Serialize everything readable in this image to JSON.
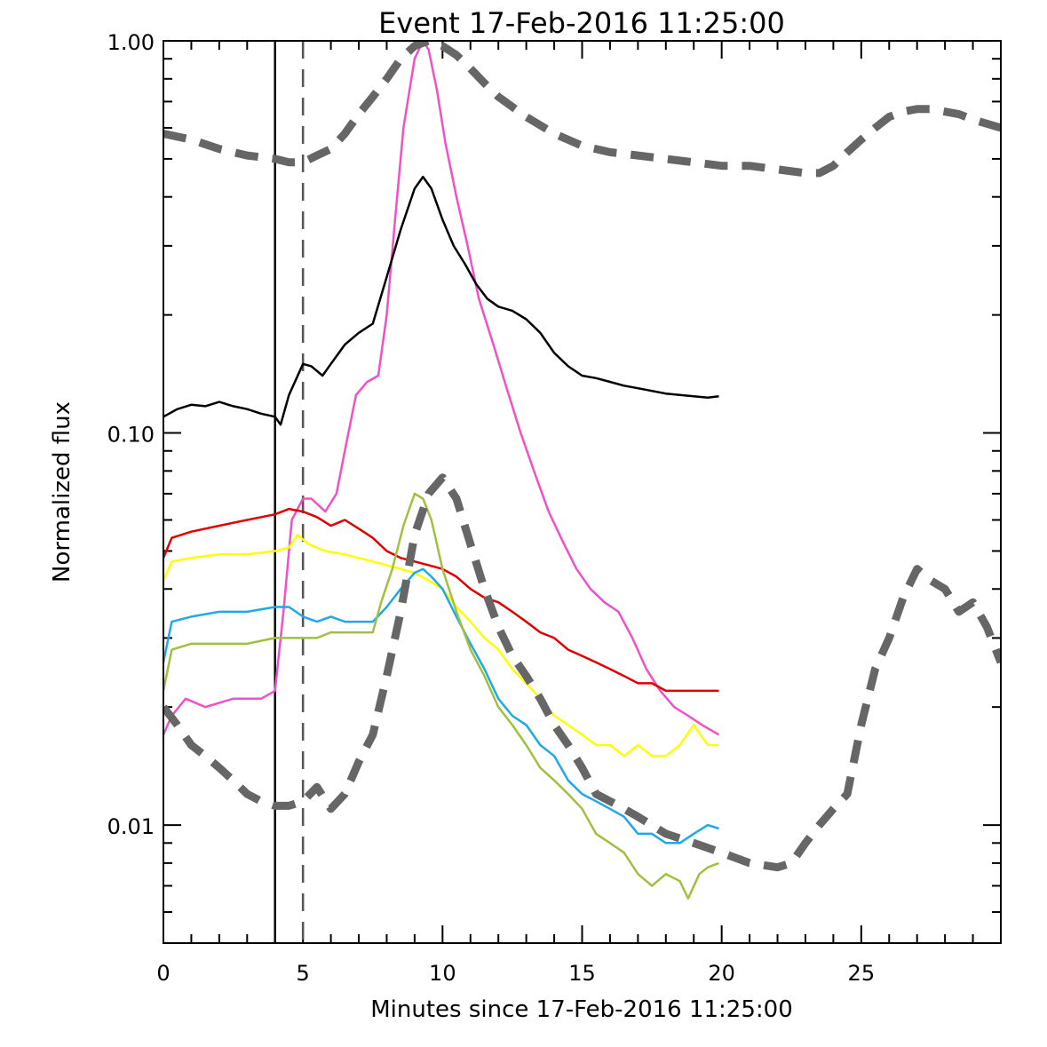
{
  "chart_data": {
    "type": "line",
    "title": "Event 17-Feb-2016 11:25:00",
    "xlabel": "Minutes since 17-Feb-2016 11:25:00",
    "ylabel": "Normalized flux",
    "xlim": [
      0,
      30
    ],
    "ylim": [
      0.005,
      1.0
    ],
    "yscale": "log",
    "grid": false,
    "x_ticks": [
      0,
      5,
      10,
      15,
      20,
      25
    ],
    "x_tick_labels": [
      "0",
      "5",
      "10",
      "15",
      "20",
      "25"
    ],
    "y_ticks": [
      0.01,
      0.1,
      1.0
    ],
    "y_tick_labels": [
      "0.01",
      "0.10",
      "1.00"
    ],
    "vertical_lines": [
      {
        "x": 4.0,
        "style": "solid",
        "color": "#000000"
      },
      {
        "x": 5.0,
        "style": "dashed",
        "color": "#555555"
      }
    ],
    "series": [
      {
        "color": "#f050c8",
        "style": "solid",
        "x": [
          0,
          0.3,
          0.8,
          1.5,
          2.5,
          3.5,
          4.0,
          4.3,
          4.6,
          5.0,
          5.3,
          5.8,
          6.2,
          6.5,
          6.9,
          7.3,
          7.7,
          8.0,
          8.3,
          8.6,
          9.0,
          9.3,
          9.5,
          9.8,
          10.1,
          10.5,
          10.9,
          11.3,
          11.8,
          12.3,
          12.8,
          13.3,
          13.8,
          14.3,
          14.8,
          15.3,
          15.8,
          16.3,
          16.8,
          17.3,
          17.8,
          18.3,
          18.8,
          19.3,
          19.9
        ],
        "y": [
          0.017,
          0.019,
          0.021,
          0.02,
          0.021,
          0.021,
          0.022,
          0.035,
          0.06,
          0.068,
          0.068,
          0.063,
          0.07,
          0.09,
          0.125,
          0.135,
          0.14,
          0.2,
          0.35,
          0.6,
          0.9,
          1.0,
          0.95,
          0.75,
          0.55,
          0.4,
          0.3,
          0.22,
          0.17,
          0.13,
          0.1,
          0.079,
          0.063,
          0.053,
          0.045,
          0.04,
          0.037,
          0.035,
          0.03,
          0.025,
          0.022,
          0.02,
          0.019,
          0.018,
          0.017
        ]
      },
      {
        "color": "#000000",
        "style": "solid",
        "x": [
          0,
          0.5,
          1.0,
          1.5,
          2.0,
          2.5,
          3.0,
          3.5,
          4.0,
          4.2,
          4.5,
          5.0,
          5.3,
          5.7,
          6.0,
          6.5,
          7.0,
          7.5,
          8.0,
          8.5,
          9.0,
          9.3,
          9.6,
          10.0,
          10.4,
          10.8,
          11.2,
          11.6,
          12.0,
          12.5,
          13.0,
          13.5,
          14.0,
          14.5,
          15.0,
          15.5,
          16.0,
          16.5,
          17.0,
          17.5,
          18.0,
          18.5,
          19.0,
          19.5,
          19.9
        ],
        "y": [
          0.11,
          0.115,
          0.118,
          0.117,
          0.12,
          0.117,
          0.115,
          0.112,
          0.11,
          0.105,
          0.125,
          0.15,
          0.148,
          0.14,
          0.15,
          0.168,
          0.18,
          0.19,
          0.25,
          0.33,
          0.42,
          0.45,
          0.42,
          0.35,
          0.3,
          0.27,
          0.24,
          0.22,
          0.21,
          0.205,
          0.195,
          0.18,
          0.16,
          0.148,
          0.14,
          0.138,
          0.135,
          0.132,
          0.13,
          0.128,
          0.126,
          0.125,
          0.124,
          0.123,
          0.124
        ]
      },
      {
        "color": "#e00000",
        "style": "solid",
        "x": [
          0,
          0.3,
          1.0,
          2.0,
          3.0,
          4.0,
          4.5,
          5.0,
          5.5,
          6.0,
          6.5,
          7.0,
          7.5,
          8.0,
          8.5,
          9.0,
          9.5,
          10.0,
          10.5,
          11.0,
          11.5,
          12.0,
          12.5,
          13.0,
          13.5,
          14.0,
          14.5,
          15.0,
          15.5,
          16.0,
          16.5,
          17.0,
          17.5,
          18.0,
          18.5,
          19.0,
          19.5,
          19.9
        ],
        "y": [
          0.048,
          0.054,
          0.056,
          0.058,
          0.06,
          0.062,
          0.064,
          0.063,
          0.061,
          0.058,
          0.06,
          0.057,
          0.054,
          0.05,
          0.048,
          0.047,
          0.046,
          0.045,
          0.043,
          0.04,
          0.038,
          0.037,
          0.035,
          0.033,
          0.031,
          0.03,
          0.028,
          0.027,
          0.026,
          0.025,
          0.024,
          0.023,
          0.023,
          0.022,
          0.022,
          0.022,
          0.022,
          0.022
        ]
      },
      {
        "color": "#ffff00",
        "style": "solid",
        "x": [
          0,
          0.3,
          1.0,
          2.0,
          3.0,
          4.0,
          4.5,
          4.8,
          5.2,
          5.8,
          6.5,
          7.0,
          7.5,
          8.0,
          8.5,
          9.0,
          9.5,
          10.0,
          10.5,
          11.0,
          11.5,
          12.0,
          12.5,
          13.0,
          13.5,
          14.0,
          14.5,
          15.0,
          15.5,
          16.0,
          16.5,
          17.0,
          17.5,
          18.0,
          18.5,
          19.0,
          19.5,
          19.9
        ],
        "y": [
          0.042,
          0.047,
          0.048,
          0.049,
          0.049,
          0.05,
          0.051,
          0.055,
          0.052,
          0.05,
          0.049,
          0.048,
          0.047,
          0.046,
          0.045,
          0.044,
          0.042,
          0.04,
          0.036,
          0.033,
          0.03,
          0.028,
          0.025,
          0.023,
          0.021,
          0.019,
          0.018,
          0.017,
          0.016,
          0.016,
          0.015,
          0.016,
          0.015,
          0.015,
          0.016,
          0.018,
          0.016,
          0.016
        ]
      },
      {
        "color": "#20a8e8",
        "style": "solid",
        "x": [
          0,
          0.3,
          1.0,
          2.0,
          3.0,
          4.0,
          4.5,
          5.0,
          5.5,
          6.0,
          6.5,
          7.0,
          7.5,
          8.0,
          8.5,
          9.0,
          9.3,
          9.6,
          10.0,
          10.5,
          11.0,
          11.5,
          12.0,
          12.5,
          13.0,
          13.5,
          14.0,
          14.5,
          15.0,
          15.5,
          16.0,
          16.5,
          17.0,
          17.5,
          18.0,
          18.5,
          19.0,
          19.5,
          19.9
        ],
        "y": [
          0.026,
          0.033,
          0.034,
          0.035,
          0.035,
          0.036,
          0.036,
          0.034,
          0.033,
          0.034,
          0.033,
          0.033,
          0.033,
          0.036,
          0.04,
          0.044,
          0.045,
          0.043,
          0.04,
          0.034,
          0.029,
          0.025,
          0.021,
          0.019,
          0.018,
          0.016,
          0.015,
          0.013,
          0.012,
          0.0115,
          0.011,
          0.0105,
          0.0095,
          0.0095,
          0.009,
          0.009,
          0.0095,
          0.01,
          0.0098
        ]
      },
      {
        "color": "#a0c040",
        "style": "solid",
        "x": [
          0,
          0.3,
          1.0,
          2.0,
          3.0,
          4.0,
          4.5,
          5.0,
          5.5,
          6.0,
          6.5,
          7.0,
          7.5,
          7.8,
          8.2,
          8.6,
          9.0,
          9.3,
          9.6,
          10.0,
          10.5,
          11.0,
          11.5,
          12.0,
          12.5,
          13.0,
          13.5,
          14.0,
          14.5,
          15.0,
          15.5,
          16.0,
          16.5,
          17.0,
          17.5,
          18.0,
          18.5,
          18.8,
          19.2,
          19.5,
          19.9
        ],
        "y": [
          0.022,
          0.028,
          0.029,
          0.029,
          0.029,
          0.03,
          0.03,
          0.03,
          0.03,
          0.031,
          0.031,
          0.031,
          0.031,
          0.037,
          0.045,
          0.058,
          0.07,
          0.068,
          0.06,
          0.045,
          0.035,
          0.028,
          0.024,
          0.02,
          0.018,
          0.016,
          0.014,
          0.013,
          0.012,
          0.011,
          0.0095,
          0.009,
          0.0085,
          0.0075,
          0.007,
          0.0075,
          0.0072,
          0.0065,
          0.0075,
          0.0078,
          0.008
        ]
      },
      {
        "color": "#666666",
        "style": "dashed",
        "width": "thick",
        "x": [
          0,
          1,
          2,
          3,
          4,
          4.5,
          5,
          5.5,
          6,
          6.5,
          7,
          7.5,
          8,
          8.5,
          9,
          9.5,
          10,
          10.5,
          11,
          11.5,
          12,
          13,
          14,
          15,
          16,
          17,
          18,
          19,
          20,
          21,
          22,
          23,
          23.5,
          24,
          24.5,
          25,
          25.5,
          26,
          26.5,
          27,
          27.5,
          28,
          28.5,
          29,
          30
        ],
        "y": [
          0.58,
          0.56,
          0.53,
          0.51,
          0.5,
          0.49,
          0.49,
          0.51,
          0.53,
          0.58,
          0.65,
          0.72,
          0.8,
          0.9,
          0.97,
          1.0,
          0.97,
          0.92,
          0.85,
          0.78,
          0.72,
          0.64,
          0.58,
          0.54,
          0.52,
          0.51,
          0.5,
          0.49,
          0.48,
          0.48,
          0.47,
          0.46,
          0.46,
          0.48,
          0.52,
          0.56,
          0.6,
          0.64,
          0.66,
          0.67,
          0.67,
          0.66,
          0.65,
          0.63,
          0.6
        ]
      },
      {
        "color": "#666666",
        "style": "dashed",
        "width": "thick",
        "x": [
          0,
          0.5,
          1,
          1.5,
          2,
          2.5,
          3,
          3.5,
          4,
          4.5,
          5,
          5.5,
          6,
          6.5,
          7,
          7.5,
          8,
          8.5,
          9,
          9.5,
          10,
          10.5,
          11,
          11.5,
          12,
          12.5,
          13,
          13.5,
          14,
          14.5,
          15,
          15.5,
          16,
          16.5,
          17,
          18,
          19,
          20,
          21,
          22,
          22.5,
          23,
          23.5,
          24,
          24.5,
          25,
          25.5,
          26,
          26.5,
          27,
          27.5,
          28,
          28.5,
          29,
          29.5,
          30
        ],
        "y": [
          0.02,
          0.018,
          0.016,
          0.015,
          0.014,
          0.013,
          0.012,
          0.0115,
          0.0112,
          0.0112,
          0.0115,
          0.0125,
          0.011,
          0.012,
          0.0145,
          0.017,
          0.024,
          0.035,
          0.055,
          0.07,
          0.077,
          0.068,
          0.052,
          0.04,
          0.032,
          0.027,
          0.024,
          0.021,
          0.018,
          0.016,
          0.014,
          0.012,
          0.0115,
          0.011,
          0.0105,
          0.0095,
          0.009,
          0.0085,
          0.008,
          0.0078,
          0.008,
          0.009,
          0.01,
          0.011,
          0.012,
          0.018,
          0.025,
          0.03,
          0.038,
          0.045,
          0.042,
          0.04,
          0.035,
          0.037,
          0.032,
          0.026
        ]
      }
    ]
  }
}
